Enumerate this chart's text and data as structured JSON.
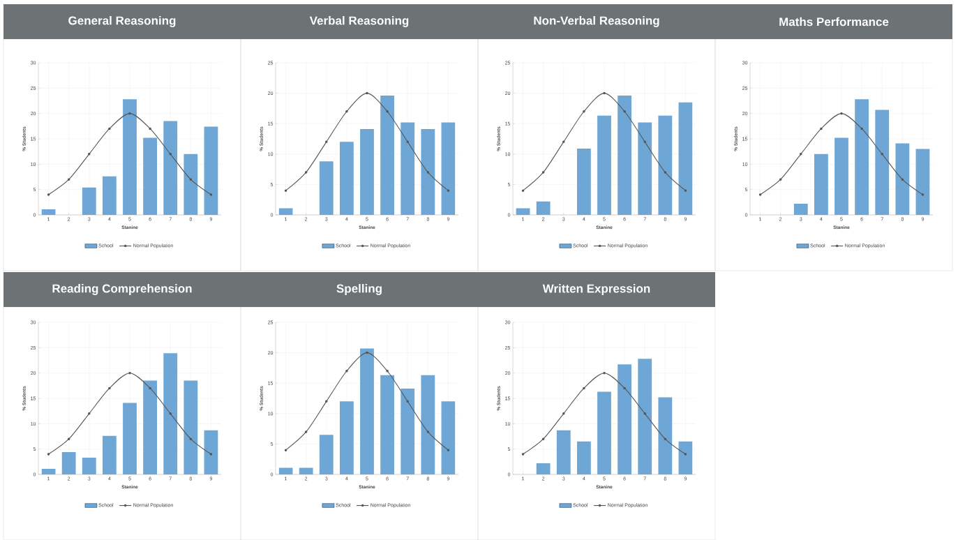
{
  "chart_data": [
    {
      "type": "bar",
      "title": "General Reasoning",
      "xlabel": "Stanine",
      "ylabel": "% Students",
      "categories": [
        "1",
        "2",
        "3",
        "4",
        "5",
        "6",
        "7",
        "8",
        "9"
      ],
      "ylim": [
        0,
        30
      ],
      "yticks": [
        0,
        5,
        10,
        15,
        20,
        25,
        30
      ],
      "grid": true,
      "legend": "bottom",
      "series": [
        {
          "name": "School",
          "color": "#6ea7d5",
          "values": [
            1.1,
            0,
            5.4,
            7.6,
            22.8,
            15.2,
            18.5,
            12,
            17.4
          ]
        },
        {
          "name": "Normal Population",
          "type": "line",
          "marker": "circle",
          "color": "#555555",
          "values": [
            4,
            7,
            12,
            17,
            20,
            17,
            12,
            7,
            4
          ]
        }
      ]
    },
    {
      "type": "bar",
      "title": "Verbal Reasoning",
      "xlabel": "Stanine",
      "ylabel": "% Students",
      "categories": [
        "1",
        "2",
        "3",
        "4",
        "5",
        "6",
        "7",
        "8",
        "9"
      ],
      "ylim": [
        0,
        25
      ],
      "yticks": [
        0,
        5,
        10,
        15,
        20,
        25
      ],
      "grid": true,
      "legend": "bottom",
      "series": [
        {
          "name": "School",
          "color": "#6ea7d5",
          "values": [
            1.1,
            0,
            8.8,
            12,
            14.1,
            19.6,
            15.2,
            14.1,
            15.2
          ]
        },
        {
          "name": "Normal Population",
          "type": "line",
          "marker": "circle",
          "color": "#555555",
          "values": [
            4,
            7,
            12,
            17,
            20,
            17,
            12,
            7,
            4
          ]
        }
      ]
    },
    {
      "type": "bar",
      "title": "Non-Verbal Reasoning",
      "xlabel": "Stanine",
      "ylabel": "% Students",
      "categories": [
        "1",
        "2",
        "3",
        "4",
        "5",
        "6",
        "7",
        "8",
        "9"
      ],
      "ylim": [
        0,
        25
      ],
      "yticks": [
        0,
        5,
        10,
        15,
        20,
        25
      ],
      "grid": true,
      "legend": "bottom",
      "series": [
        {
          "name": "School",
          "color": "#6ea7d5",
          "values": [
            1.1,
            2.2,
            0,
            10.9,
            16.3,
            19.6,
            15.2,
            16.3,
            18.5
          ]
        },
        {
          "name": "Normal Population",
          "type": "line",
          "marker": "circle",
          "color": "#555555",
          "values": [
            4,
            7,
            12,
            17,
            20,
            17,
            12,
            7,
            4
          ]
        }
      ]
    },
    {
      "type": "bar",
      "title": "Maths Performance",
      "xlabel": "Stanine",
      "ylabel": "% Students",
      "categories": [
        "1",
        "2",
        "3",
        "4",
        "5",
        "6",
        "7",
        "8",
        "9"
      ],
      "ylim": [
        0,
        30
      ],
      "yticks": [
        0,
        5,
        10,
        15,
        20,
        25,
        30
      ],
      "grid": true,
      "legend": "bottom",
      "series": [
        {
          "name": "School",
          "color": "#6ea7d5",
          "values": [
            0,
            0,
            2.2,
            12,
            15.2,
            22.8,
            20.7,
            14.1,
            13
          ]
        },
        {
          "name": "Normal Population",
          "type": "line",
          "marker": "circle",
          "color": "#555555",
          "values": [
            4,
            7,
            12,
            17,
            20,
            17,
            12,
            7,
            4
          ]
        }
      ]
    },
    {
      "type": "bar",
      "title": "Reading Comprehension",
      "xlabel": "Stanine",
      "ylabel": "% Students",
      "categories": [
        "1",
        "2",
        "3",
        "4",
        "5",
        "6",
        "7",
        "8",
        "9"
      ],
      "ylim": [
        0,
        30
      ],
      "yticks": [
        0,
        5,
        10,
        15,
        20,
        25,
        30
      ],
      "grid": true,
      "legend": "bottom",
      "series": [
        {
          "name": "School",
          "color": "#6ea7d5",
          "values": [
            1.1,
            4.4,
            3.3,
            7.6,
            14.1,
            18.5,
            23.9,
            18.5,
            8.7
          ]
        },
        {
          "name": "Normal Population",
          "type": "line",
          "marker": "circle",
          "color": "#555555",
          "values": [
            4,
            7,
            12,
            17,
            20,
            17,
            12,
            7,
            4
          ]
        }
      ]
    },
    {
      "type": "bar",
      "title": "Spelling",
      "xlabel": "Stanine",
      "ylabel": "% Students",
      "categories": [
        "1",
        "2",
        "3",
        "4",
        "5",
        "6",
        "7",
        "8",
        "9"
      ],
      "ylim": [
        0,
        25
      ],
      "yticks": [
        0,
        5,
        10,
        15,
        20,
        25
      ],
      "grid": true,
      "legend": "bottom",
      "series": [
        {
          "name": "School",
          "color": "#6ea7d5",
          "values": [
            1.1,
            1.1,
            6.5,
            12,
            20.7,
            16.3,
            14.1,
            16.3,
            12
          ]
        },
        {
          "name": "Normal Population",
          "type": "line",
          "marker": "circle",
          "color": "#555555",
          "values": [
            4,
            7,
            12,
            17,
            20,
            17,
            12,
            7,
            4
          ]
        }
      ]
    },
    {
      "type": "bar",
      "title": "Written Expression",
      "xlabel": "Stanine",
      "ylabel": "% Students",
      "categories": [
        "1",
        "2",
        "3",
        "4",
        "5",
        "6",
        "7",
        "8",
        "9"
      ],
      "ylim": [
        0,
        30
      ],
      "yticks": [
        0,
        5,
        10,
        15,
        20,
        25,
        30
      ],
      "grid": true,
      "legend": "bottom",
      "series": [
        {
          "name": "School",
          "color": "#6ea7d5",
          "values": [
            0,
            2.2,
            8.7,
            6.5,
            16.3,
            21.7,
            22.8,
            15.2,
            6.5
          ]
        },
        {
          "name": "Normal Population",
          "type": "line",
          "marker": "circle",
          "color": "#555555",
          "values": [
            4,
            7,
            12,
            17,
            20,
            17,
            12,
            7,
            4
          ]
        }
      ]
    }
  ]
}
